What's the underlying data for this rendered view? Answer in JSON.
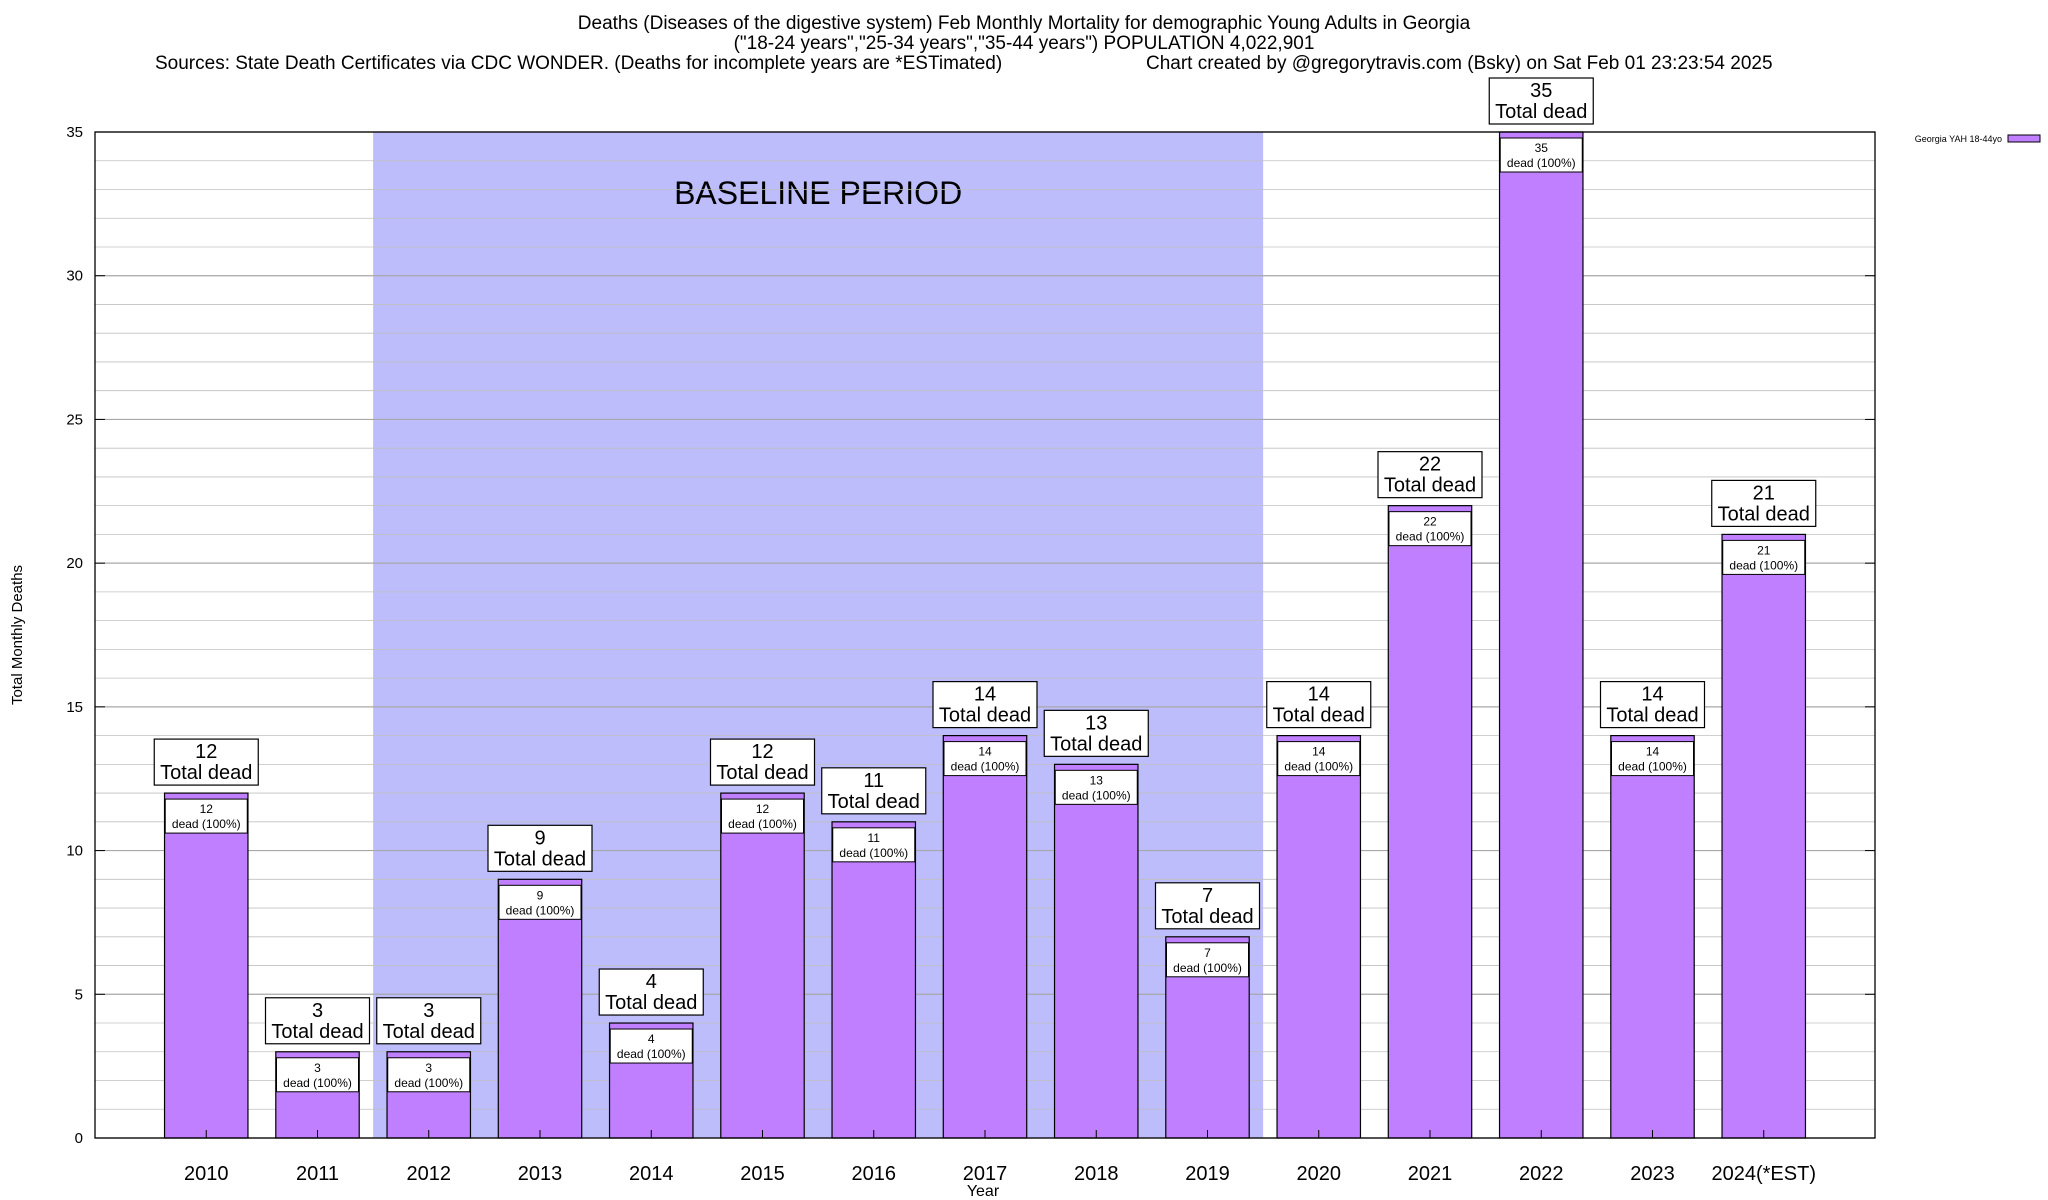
{
  "header": {
    "title_line1": "Deaths (Diseases of the digestive system) Feb Monthly Mortality for demographic Young Adults in Georgia",
    "title_line2": "(\"18-24 years\",\"25-34 years\",\"35-44 years\") POPULATION 4,022,901",
    "sources": "Sources: State Death Certificates via CDC WONDER. (Deaths for incomplete years are *ESTimated)",
    "credit": "Chart created by @gregorytravis.com (Bsky) on Sat Feb 01 23:23:54 2025"
  },
  "colors": {
    "bar": "#bf7fff",
    "baseline": "#bdbdfb",
    "grid": "#c0c0c0"
  },
  "chart_data": {
    "type": "bar",
    "title": "Deaths (Diseases of the digestive system) Feb Monthly Mortality for demographic Young Adults in Georgia",
    "xlabel": "Year",
    "ylabel": "Total Monthly Deaths",
    "ylim": [
      0,
      35
    ],
    "yticks": [
      0,
      5,
      10,
      15,
      20,
      25,
      30,
      35
    ],
    "grid": true,
    "categories": [
      "2010",
      "2011",
      "2012",
      "2013",
      "2014",
      "2015",
      "2016",
      "2017",
      "2018",
      "2019",
      "2020",
      "2021",
      "2022",
      "2023",
      "2024(*EST)"
    ],
    "series": [
      {
        "name": "Georgia YAH 18-44yo",
        "values": [
          12,
          3,
          3,
          9,
          4,
          12,
          11,
          14,
          13,
          7,
          14,
          22,
          35,
          14,
          21
        ]
      }
    ],
    "outer_label_text": "Total dead",
    "inner_label_text": "dead (100%)",
    "shaded_region": {
      "label": "BASELINE PERIOD",
      "from_category": "2012",
      "to_category": "2019"
    },
    "legend": {
      "position": "top-right",
      "label": "Georgia YAH 18-44yo"
    }
  }
}
